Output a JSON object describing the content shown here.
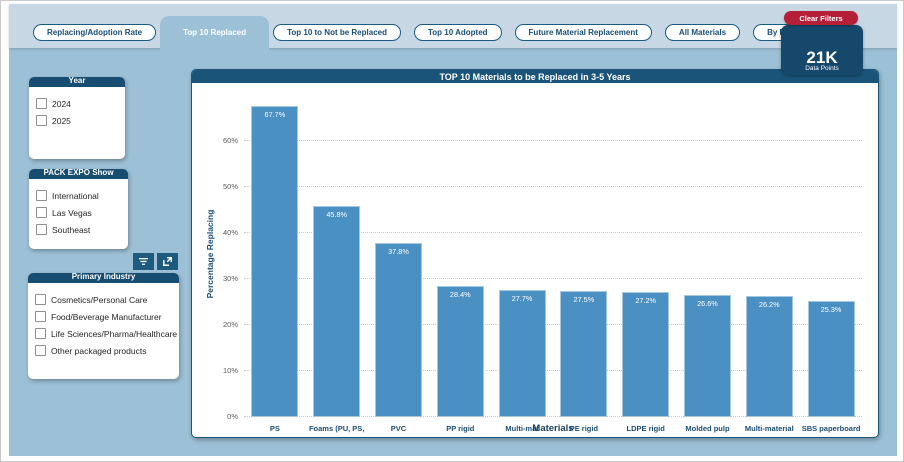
{
  "header": {
    "tabs": [
      {
        "label": "Replacing/Adoption Rate",
        "selected": false
      },
      {
        "label": "Top 10 Replaced",
        "selected": true
      },
      {
        "label": "Top 10 to Not be Replaced",
        "selected": false
      },
      {
        "label": "Top 10 Adopted",
        "selected": false
      },
      {
        "label": "Future Material Replacement",
        "selected": false
      },
      {
        "label": "All Materials",
        "selected": false
      },
      {
        "label": "By Revenue",
        "selected": false
      }
    ],
    "clear_filters_label": "Clear Filters",
    "data_points": {
      "value": "21K",
      "label": "Data Points"
    }
  },
  "sidebar": {
    "filter_cards": [
      {
        "title": "Year",
        "items": [
          "2024",
          "2025"
        ]
      },
      {
        "title": "PACK EXPO Show",
        "items": [
          "International",
          "Las Vegas",
          "Southeast"
        ]
      },
      {
        "title": "Primary Industry",
        "items": [
          "Cosmetics/Personal Care",
          "Food/Beverage Manufacturer",
          "Life Sciences/Pharma/Healthcare",
          "Other packaged products"
        ]
      }
    ],
    "visual_toolbar": {
      "icons": [
        "filter-lines-icon",
        "expand-icon"
      ]
    }
  },
  "chart_data": {
    "type": "bar",
    "title": "TOP 10 Materials to be Replaced in 3-5 Years",
    "categories": [
      "PS",
      "Foams (PU, PS,",
      "PVC",
      "PP rigid",
      "Multi-mat",
      "PE rigid",
      "LDPE rigid",
      "Molded pulp",
      "Multi-material",
      "SBS paperboard"
    ],
    "values": [
      67.7,
      45.8,
      37.8,
      28.4,
      27.7,
      27.5,
      27.2,
      26.6,
      26.2,
      25.3
    ],
    "data_labels": [
      "67.7%",
      "45.8%",
      "37.8%",
      "28.4%",
      "27.7%",
      "27.5%",
      "27.2%",
      "26.6%",
      "26.2%",
      "25.3%"
    ],
    "xlabel": "Materials",
    "ylabel": "Percentage Replacing",
    "yticks": [
      "0%",
      "10%",
      "20%",
      "30%",
      "40%",
      "50%",
      "60%"
    ],
    "ytick_values": [
      0,
      10,
      20,
      30,
      40,
      50,
      60
    ],
    "ylim": [
      0,
      70
    ],
    "grid": "dotted horizontal",
    "legend": "none",
    "bar_color": "#4a90c2"
  },
  "colors": {
    "canvas_blue": "#9cc0d6",
    "topstrip_blue": "#c7d8e4",
    "navy": "#164a6e",
    "title_bar_navy": "#1a5478",
    "clear_filters_red": "#b52038",
    "bar_blue": "#4a90c2"
  }
}
